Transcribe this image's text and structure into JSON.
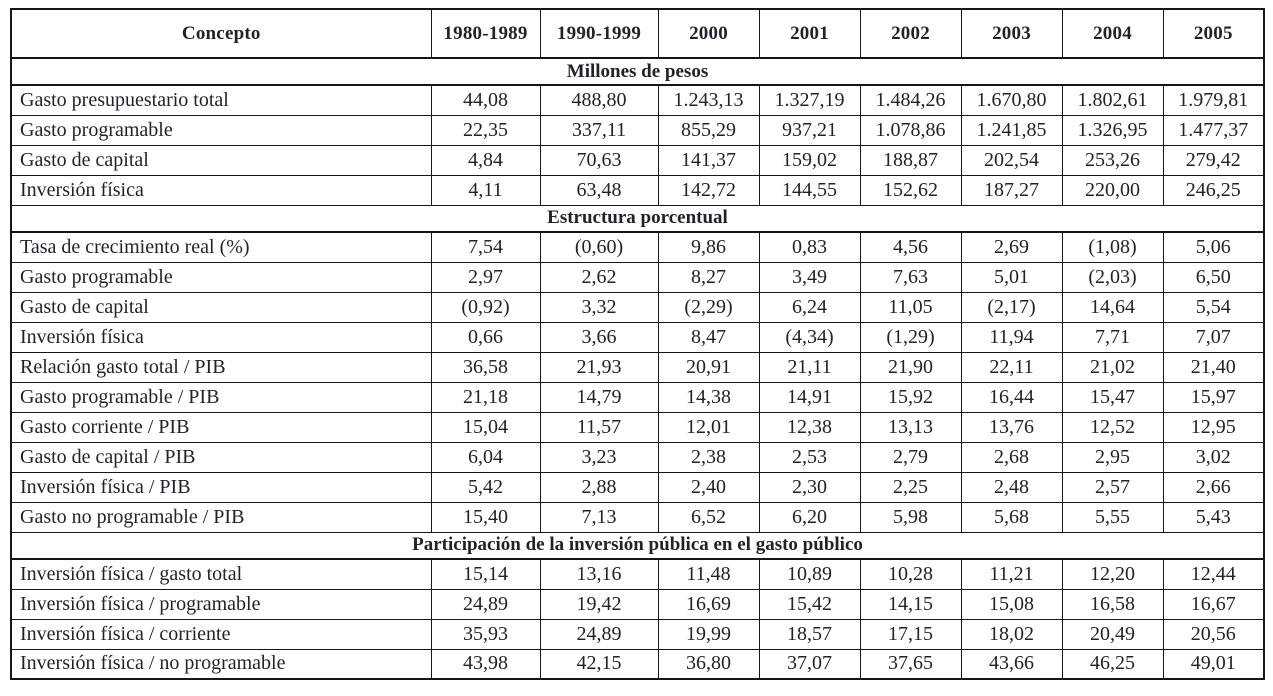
{
  "page": {
    "background": "#ffffff",
    "border_color": "#15151a",
    "text_color": "#22222a"
  },
  "table": {
    "columns": [
      "Concepto",
      "1980-1989",
      "1990-1999",
      "2000",
      "2001",
      "2002",
      "2003",
      "2004",
      "2005"
    ],
    "sections": [
      {
        "title": "Millones de pesos",
        "rows": [
          {
            "label": "Gasto presupuestario total",
            "values": [
              "44,08",
              "488,80",
              "1.243,13",
              "1.327,19",
              "1.484,26",
              "1.670,80",
              "1.802,61",
              "1.979,81"
            ]
          },
          {
            "label": "Gasto programable",
            "values": [
              "22,35",
              "337,11",
              "855,29",
              "937,21",
              "1.078,86",
              "1.241,85",
              "1.326,95",
              "1.477,37"
            ]
          },
          {
            "label": "Gasto de capital",
            "values": [
              "4,84",
              "70,63",
              "141,37",
              "159,02",
              "188,87",
              "202,54",
              "253,26",
              "279,42"
            ]
          },
          {
            "label": "Inversión física",
            "values": [
              "4,11",
              "63,48",
              "142,72",
              "144,55",
              "152,62",
              "187,27",
              "220,00",
              "246,25"
            ]
          }
        ]
      },
      {
        "title": "Estructura porcentual",
        "rows": [
          {
            "label": "Tasa de crecimiento real (%)",
            "values": [
              "7,54",
              "(0,60)",
              "9,86",
              "0,83",
              "4,56",
              "2,69",
              "(1,08)",
              "5,06"
            ]
          },
          {
            "label": "Gasto programable",
            "values": [
              "2,97",
              "2,62",
              "8,27",
              "3,49",
              "7,63",
              "5,01",
              "(2,03)",
              "6,50"
            ]
          },
          {
            "label": "Gasto de capital",
            "values": [
              "(0,92)",
              "3,32",
              "(2,29)",
              "6,24",
              "11,05",
              "(2,17)",
              "14,64",
              "5,54"
            ]
          },
          {
            "label": "Inversión física",
            "values": [
              "0,66",
              "3,66",
              "8,47",
              "(4,34)",
              "(1,29)",
              "11,94",
              "7,71",
              "7,07"
            ]
          },
          {
            "label": "Relación gasto total / PIB",
            "values": [
              "36,58",
              "21,93",
              "20,91",
              "21,11",
              "21,90",
              "22,11",
              "21,02",
              "21,40"
            ]
          },
          {
            "label": "Gasto programable / PIB",
            "values": [
              "21,18",
              "14,79",
              "14,38",
              "14,91",
              "15,92",
              "16,44",
              "15,47",
              "15,97"
            ]
          },
          {
            "label": "Gasto corriente / PIB",
            "values": [
              "15,04",
              "11,57",
              "12,01",
              "12,38",
              "13,13",
              "13,76",
              "12,52",
              "12,95"
            ]
          },
          {
            "label": "Gasto de capital / PIB",
            "values": [
              "6,04",
              "3,23",
              "2,38",
              "2,53",
              "2,79",
              "2,68",
              "2,95",
              "3,02"
            ]
          },
          {
            "label": "Inversión física / PIB",
            "values": [
              "5,42",
              "2,88",
              "2,40",
              "2,30",
              "2,25",
              "2,48",
              "2,57",
              "2,66"
            ]
          },
          {
            "label": "Gasto no programable / PIB",
            "values": [
              "15,40",
              "7,13",
              "6,52",
              "6,20",
              "5,98",
              "5,68",
              "5,55",
              "5,43"
            ]
          }
        ]
      },
      {
        "title": "Participación de la inversión pública en el gasto público",
        "rows": [
          {
            "label": "Inversión física / gasto total",
            "values": [
              "15,14",
              "13,16",
              "11,48",
              "10,89",
              "10,28",
              "11,21",
              "12,20",
              "12,44"
            ]
          },
          {
            "label": "Inversión física / programable",
            "values": [
              "24,89",
              "19,42",
              "16,69",
              "15,42",
              "14,15",
              "15,08",
              "16,58",
              "16,67"
            ]
          },
          {
            "label": "Inversión física / corriente",
            "values": [
              "35,93",
              "24,89",
              "19,99",
              "18,57",
              "17,15",
              "18,02",
              "20,49",
              "20,56"
            ]
          },
          {
            "label": "Inversión física / no programable",
            "values": [
              "43,98",
              "42,15",
              "36,80",
              "37,07",
              "37,65",
              "43,66",
              "46,25",
              "49,01"
            ]
          }
        ]
      }
    ]
  }
}
